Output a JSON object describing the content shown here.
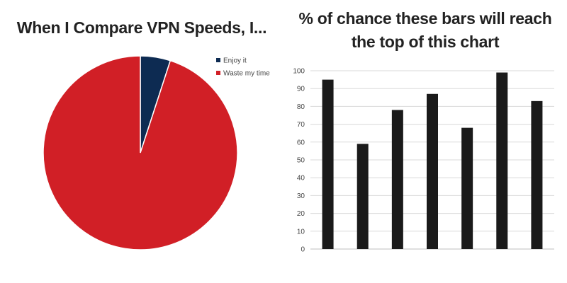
{
  "chart_data": [
    {
      "type": "pie",
      "title": "When I Compare VPN Speeds, I...",
      "categories": [
        "Enjoy it",
        "Waste my time"
      ],
      "values": [
        5,
        95
      ],
      "colors": [
        "#0d2b52",
        "#d11f26"
      ],
      "legend_position": "top-right"
    },
    {
      "type": "bar",
      "title": "% of chance these bars will reach the top of this chart",
      "categories": [
        "",
        "",
        "",
        "",
        "",
        "",
        ""
      ],
      "values": [
        95,
        59,
        78,
        87,
        68,
        99,
        83
      ],
      "ylim": [
        0,
        100
      ],
      "yticks": [
        0,
        10,
        20,
        30,
        40,
        50,
        60,
        70,
        80,
        90,
        100
      ],
      "xlabel": "",
      "ylabel": "",
      "bar_color": "#1a1a1a",
      "grid": true
    }
  ]
}
